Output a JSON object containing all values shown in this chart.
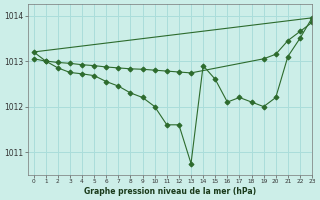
{
  "xlabel": "Graphe pression niveau de la mer (hPa)",
  "background_color": "#cceee8",
  "grid_color": "#aaddda",
  "line_color": "#2d6b2d",
  "ylim": [
    1010.5,
    1014.25
  ],
  "xlim": [
    -0.5,
    23
  ],
  "yticks": [
    1011,
    1012,
    1013,
    1014
  ],
  "xticks": [
    0,
    1,
    2,
    3,
    4,
    5,
    6,
    7,
    8,
    9,
    10,
    11,
    12,
    13,
    14,
    15,
    16,
    17,
    18,
    19,
    20,
    21,
    22,
    23
  ],
  "series": [
    {
      "x": [
        0,
        23
      ],
      "y": [
        1013.2,
        1013.95
      ]
    },
    {
      "x": [
        0,
        1,
        2,
        3,
        4,
        5,
        6,
        7,
        8,
        9,
        10,
        11,
        12,
        13,
        19,
        20,
        21,
        22,
        23
      ],
      "y": [
        1013.05,
        1013.0,
        1012.97,
        1012.95,
        1012.92,
        1012.9,
        1012.87,
        1012.85,
        1012.83,
        1012.82,
        1012.8,
        1012.78,
        1012.76,
        1012.74,
        1013.05,
        1013.15,
        1013.45,
        1013.65,
        1013.85
      ]
    },
    {
      "x": [
        0,
        1,
        2,
        3,
        4,
        5,
        6,
        7,
        8,
        9,
        10,
        11,
        12,
        13,
        14,
        15,
        16,
        17,
        18,
        19,
        20,
        21,
        22,
        23
      ],
      "y": [
        1013.2,
        1013.0,
        1012.85,
        1012.75,
        1012.72,
        1012.68,
        1012.55,
        1012.45,
        1012.3,
        1012.2,
        1012.0,
        1011.6,
        1011.6,
        1010.75,
        1012.9,
        1012.6,
        1012.1,
        1012.2,
        1012.1,
        1012.0,
        1012.2,
        1013.1,
        1013.5,
        1013.95
      ]
    }
  ]
}
